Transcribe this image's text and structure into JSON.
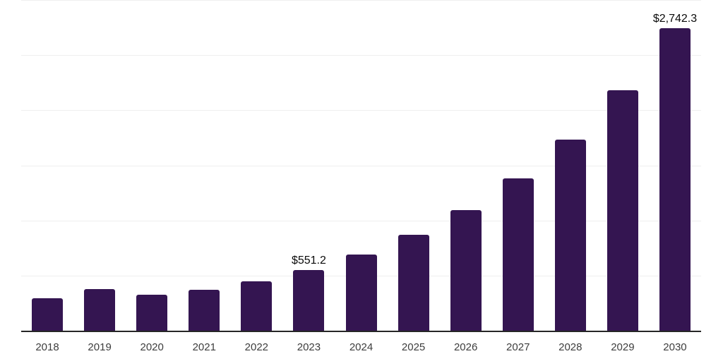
{
  "chart_data": {
    "type": "bar",
    "title": "",
    "xlabel": "",
    "ylabel": "",
    "categories": [
      "2018",
      "2019",
      "2020",
      "2021",
      "2022",
      "2023",
      "2024",
      "2025",
      "2026",
      "2027",
      "2028",
      "2029",
      "2030"
    ],
    "values": [
      294,
      380,
      329,
      373,
      449,
      551.2,
      693.2,
      871.9,
      1096.6,
      1379.2,
      1734.6,
      2181.5,
      2742.3
    ],
    "bar_labels": [
      "",
      "",
      "",
      "",
      "",
      "$551.2",
      "",
      "",
      "",
      "",
      "",
      "",
      "$2,742.3"
    ],
    "ylim": [
      0,
      3000
    ],
    "gridline_step": 500,
    "grid": "horizontal",
    "legend_position": "none",
    "colors": {
      "bar": "#341551",
      "axis_line": "#262626",
      "gridline": "#efefef",
      "tick_label": "#3d3d3d",
      "data_label": "#0a0a0a",
      "background": "#ffffff"
    }
  }
}
